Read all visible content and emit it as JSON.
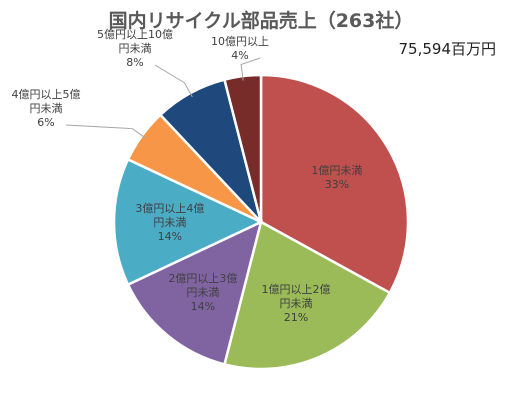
{
  "chart_data": {
    "type": "pie",
    "title": "国内リサイクル部品売上（263社）",
    "total_label": "75,594百万円",
    "start_angle_deg": 0,
    "direction": "clockwise",
    "slices": [
      {
        "label": "1億円未満",
        "label_lines": [
          "1億円未満"
        ],
        "pct_text": "33%",
        "value": 33,
        "color": "#C0504D"
      },
      {
        "label": "1億円以上2億円未満",
        "label_lines": [
          "1億円以上2億",
          "円未満"
        ],
        "pct_text": "21%",
        "value": 21,
        "color": "#9BBB59"
      },
      {
        "label": "2億円以上3億円未満",
        "label_lines": [
          "2億円以上3億",
          "円未満"
        ],
        "pct_text": "14%",
        "value": 14,
        "color": "#8064A2"
      },
      {
        "label": "3億円以上4億円未満",
        "label_lines": [
          "3億円以上4億",
          "円未満"
        ],
        "pct_text": "14%",
        "value": 14,
        "color": "#4BACC6"
      },
      {
        "label": "4億円以上5億円未満",
        "label_lines": [
          "4億円以上5億",
          "円未満"
        ],
        "pct_text": "6%",
        "value": 6,
        "color": "#F79646"
      },
      {
        "label": "5億円以上10億円未満",
        "label_lines": [
          "5億円以上10億",
          "円未満"
        ],
        "pct_text": "8%",
        "value": 8,
        "color": "#1F497D"
      },
      {
        "label": "10億円以上",
        "label_lines": [
          "10億円以上"
        ],
        "pct_text": "4%",
        "value": 4,
        "color": "#772C2A"
      }
    ]
  }
}
